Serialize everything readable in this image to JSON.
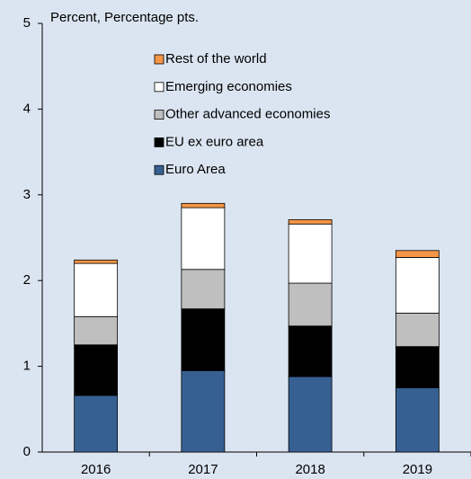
{
  "chart_data": {
    "type": "stacked_bar",
    "y_label": "Percent, Percentage pts.",
    "categories": [
      "2016",
      "2017",
      "2018",
      "2019"
    ],
    "series": [
      {
        "name": "Euro Area",
        "color": "#376092",
        "values": [
          0.66,
          0.95,
          0.88,
          0.75
        ]
      },
      {
        "name": "EU ex euro area",
        "color": "#000000",
        "values": [
          0.59,
          0.72,
          0.59,
          0.48
        ]
      },
      {
        "name": "Other advanced economies",
        "color": "#bfbfbf",
        "values": [
          0.33,
          0.46,
          0.5,
          0.39
        ]
      },
      {
        "name": "Emerging economies",
        "color": "#ffffff",
        "values": [
          0.62,
          0.72,
          0.69,
          0.65
        ]
      },
      {
        "name": "Rest of the world",
        "color": "#f79646",
        "values": [
          0.04,
          0.05,
          0.05,
          0.08
        ]
      }
    ],
    "ylim": [
      0,
      5
    ],
    "yticks": [
      0,
      1,
      2,
      3,
      4,
      5
    ]
  }
}
